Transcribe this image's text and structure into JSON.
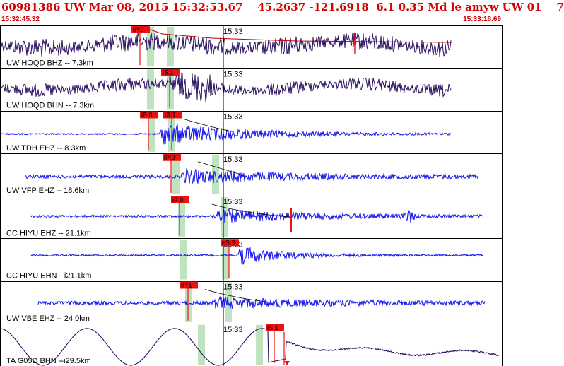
{
  "header": {
    "title": "60981386 UW Mar 08, 2015 15:32:53.67    45.2637 -121.6918  6.1 0.35 Md le amyw UW 01    7",
    "start_time": "15:32:45.32",
    "end_time": "15:33:18.69"
  },
  "colors": {
    "header_text": "#d40000",
    "pick_fill": "#ee1111",
    "travel_curve": "#c00000",
    "highlight": "#bfe3bf",
    "trace_dark": "#2a1060",
    "trace_blue": "#1a1aee",
    "grid": "#000000"
  },
  "chart_data": {
    "type": "line",
    "title": "60981386 UW Mar 08, 2015 15:32:53.67    45.2637 -121.6918  6.1 0.35 Md le amyw UW 01    7",
    "x_range": [
      "15:32:45.32",
      "15:33:18.69"
    ],
    "minute_tick_label": "15:33",
    "channels": [
      {
        "label": "UW HOQD BHZ -- 7.3km",
        "pick": "iP:0",
        "trace": "dark"
      },
      {
        "label": "UW HOQD BHN -- 7.3km",
        "pick": "iS:1",
        "trace": "dark"
      },
      {
        "label": "UW TDH EHZ -- 8.3km",
        "picks": [
          "iP:0",
          "iS:1"
        ],
        "trace": "blue"
      },
      {
        "label": "UW VFP EHZ -- 18.6km",
        "pick": "iP:0",
        "trace": "blue"
      },
      {
        "label": "CC HIYU EHZ -- 21.1km",
        "pick": "iP:0",
        "trace": "blue"
      },
      {
        "label": "CC HIYU EHN --i21.1km",
        "pick": "eS:3",
        "trace": "blue"
      },
      {
        "label": "UW VBE EHZ -- 24.0km",
        "pick": "iP:1",
        "trace": "blue"
      },
      {
        "label": "TA G05D BHN --i29.5km",
        "pick": "iS:1",
        "trace": "dark-slow"
      }
    ]
  }
}
